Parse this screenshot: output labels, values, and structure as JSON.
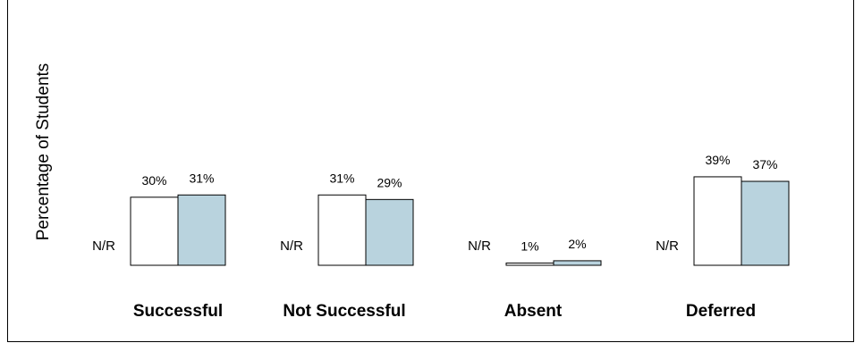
{
  "chart_data": {
    "type": "bar",
    "ylabel": "Percentage of Students",
    "categories": [
      "Successful",
      "Not Successful",
      "Absent",
      "Deferred"
    ],
    "series": [
      {
        "label": "N/R",
        "values": [
          null,
          null,
          null,
          null
        ]
      },
      {
        "values": [
          30,
          31,
          1,
          39
        ]
      },
      {
        "values": [
          31,
          29,
          2,
          37
        ]
      }
    ],
    "value_labels": [
      [
        "30%",
        "31%"
      ],
      [
        "31%",
        "29%"
      ],
      [
        "1%",
        "2%"
      ],
      [
        "39%",
        "37%"
      ]
    ],
    "colors": [
      "#ffffff",
      "#b9d3de"
    ],
    "grid": false
  }
}
